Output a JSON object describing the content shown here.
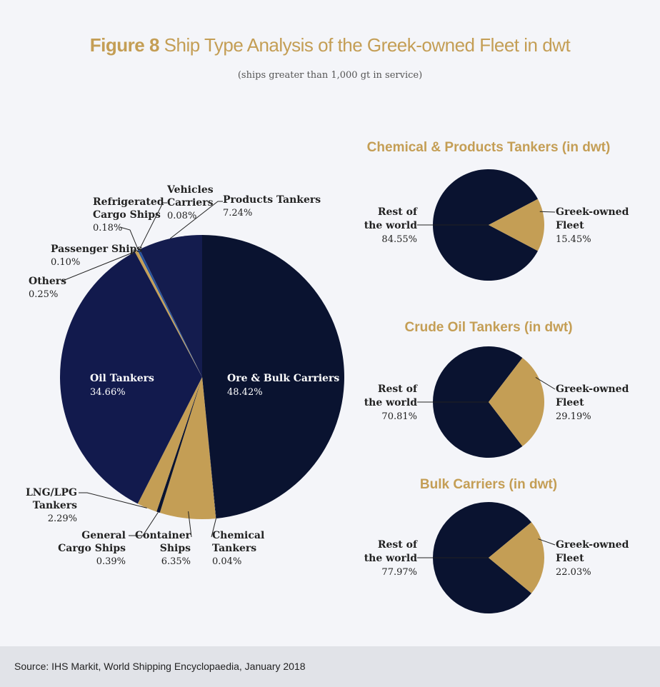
{
  "header": {
    "figure_label": "Figure 8",
    "title": "Ship Type Analysis of the Greek-owned Fleet in dwt",
    "subtitle": "(ships greater than 1,000 gt in service)"
  },
  "footer": {
    "source": "Source: IHS Markit, World Shipping Encyclopaedia, January 2018"
  },
  "colors": {
    "navy": "#0a1330",
    "navy_mid": "#141c4e",
    "navy_light": "#121a4d",
    "gold": "#c49e55",
    "blue": "#1f4d99"
  },
  "chart_data": [
    {
      "type": "pie",
      "title": "",
      "slices": [
        {
          "label": "Ore & Bulk Carriers",
          "value": 48.42,
          "value_label": "48.42%"
        },
        {
          "label": "Chemical Tankers",
          "value": 0.04,
          "value_label": "0.04%"
        },
        {
          "label": "Container Ships",
          "value": 6.35,
          "value_label": "6.35%"
        },
        {
          "label": "General Cargo Ships",
          "value": 0.39,
          "value_label": "0.39%"
        },
        {
          "label": "LNG/LPG Tankers",
          "value": 2.29,
          "value_label": "2.29%"
        },
        {
          "label": "Oil Tankers",
          "value": 34.66,
          "value_label": "34.66%"
        },
        {
          "label": "Others",
          "value": 0.25,
          "value_label": "0.25%"
        },
        {
          "label": "Passenger Ships",
          "value": 0.1,
          "value_label": "0.10%"
        },
        {
          "label": "Refrigerated Cargo Ships",
          "value": 0.18,
          "value_label": "0.18%"
        },
        {
          "label": "Vehicles Carriers",
          "value": 0.08,
          "value_label": "0.08%"
        },
        {
          "label": "Products Tankers",
          "value": 7.24,
          "value_label": "7.24%"
        }
      ]
    },
    {
      "type": "pie",
      "title": "Chemical & Products Tankers (in dwt)",
      "slices": [
        {
          "label": "Greek-owned Fleet",
          "value": 15.45,
          "value_label": "15.45%"
        },
        {
          "label": "Rest of the world",
          "value": 84.55,
          "value_label": "84.55%"
        }
      ]
    },
    {
      "type": "pie",
      "title": "Crude Oil Tankers (in dwt)",
      "slices": [
        {
          "label": "Greek-owned Fleet",
          "value": 29.19,
          "value_label": "29.19%"
        },
        {
          "label": "Rest of the world",
          "value": 70.81,
          "value_label": "70.81%"
        }
      ]
    },
    {
      "type": "pie",
      "title": "Bulk Carriers (in dwt)",
      "slices": [
        {
          "label": "Greek-owned Fleet",
          "value": 22.03,
          "value_label": "22.03%"
        },
        {
          "label": "Rest of the world",
          "value": 77.97,
          "value_label": "77.97%"
        }
      ]
    }
  ]
}
